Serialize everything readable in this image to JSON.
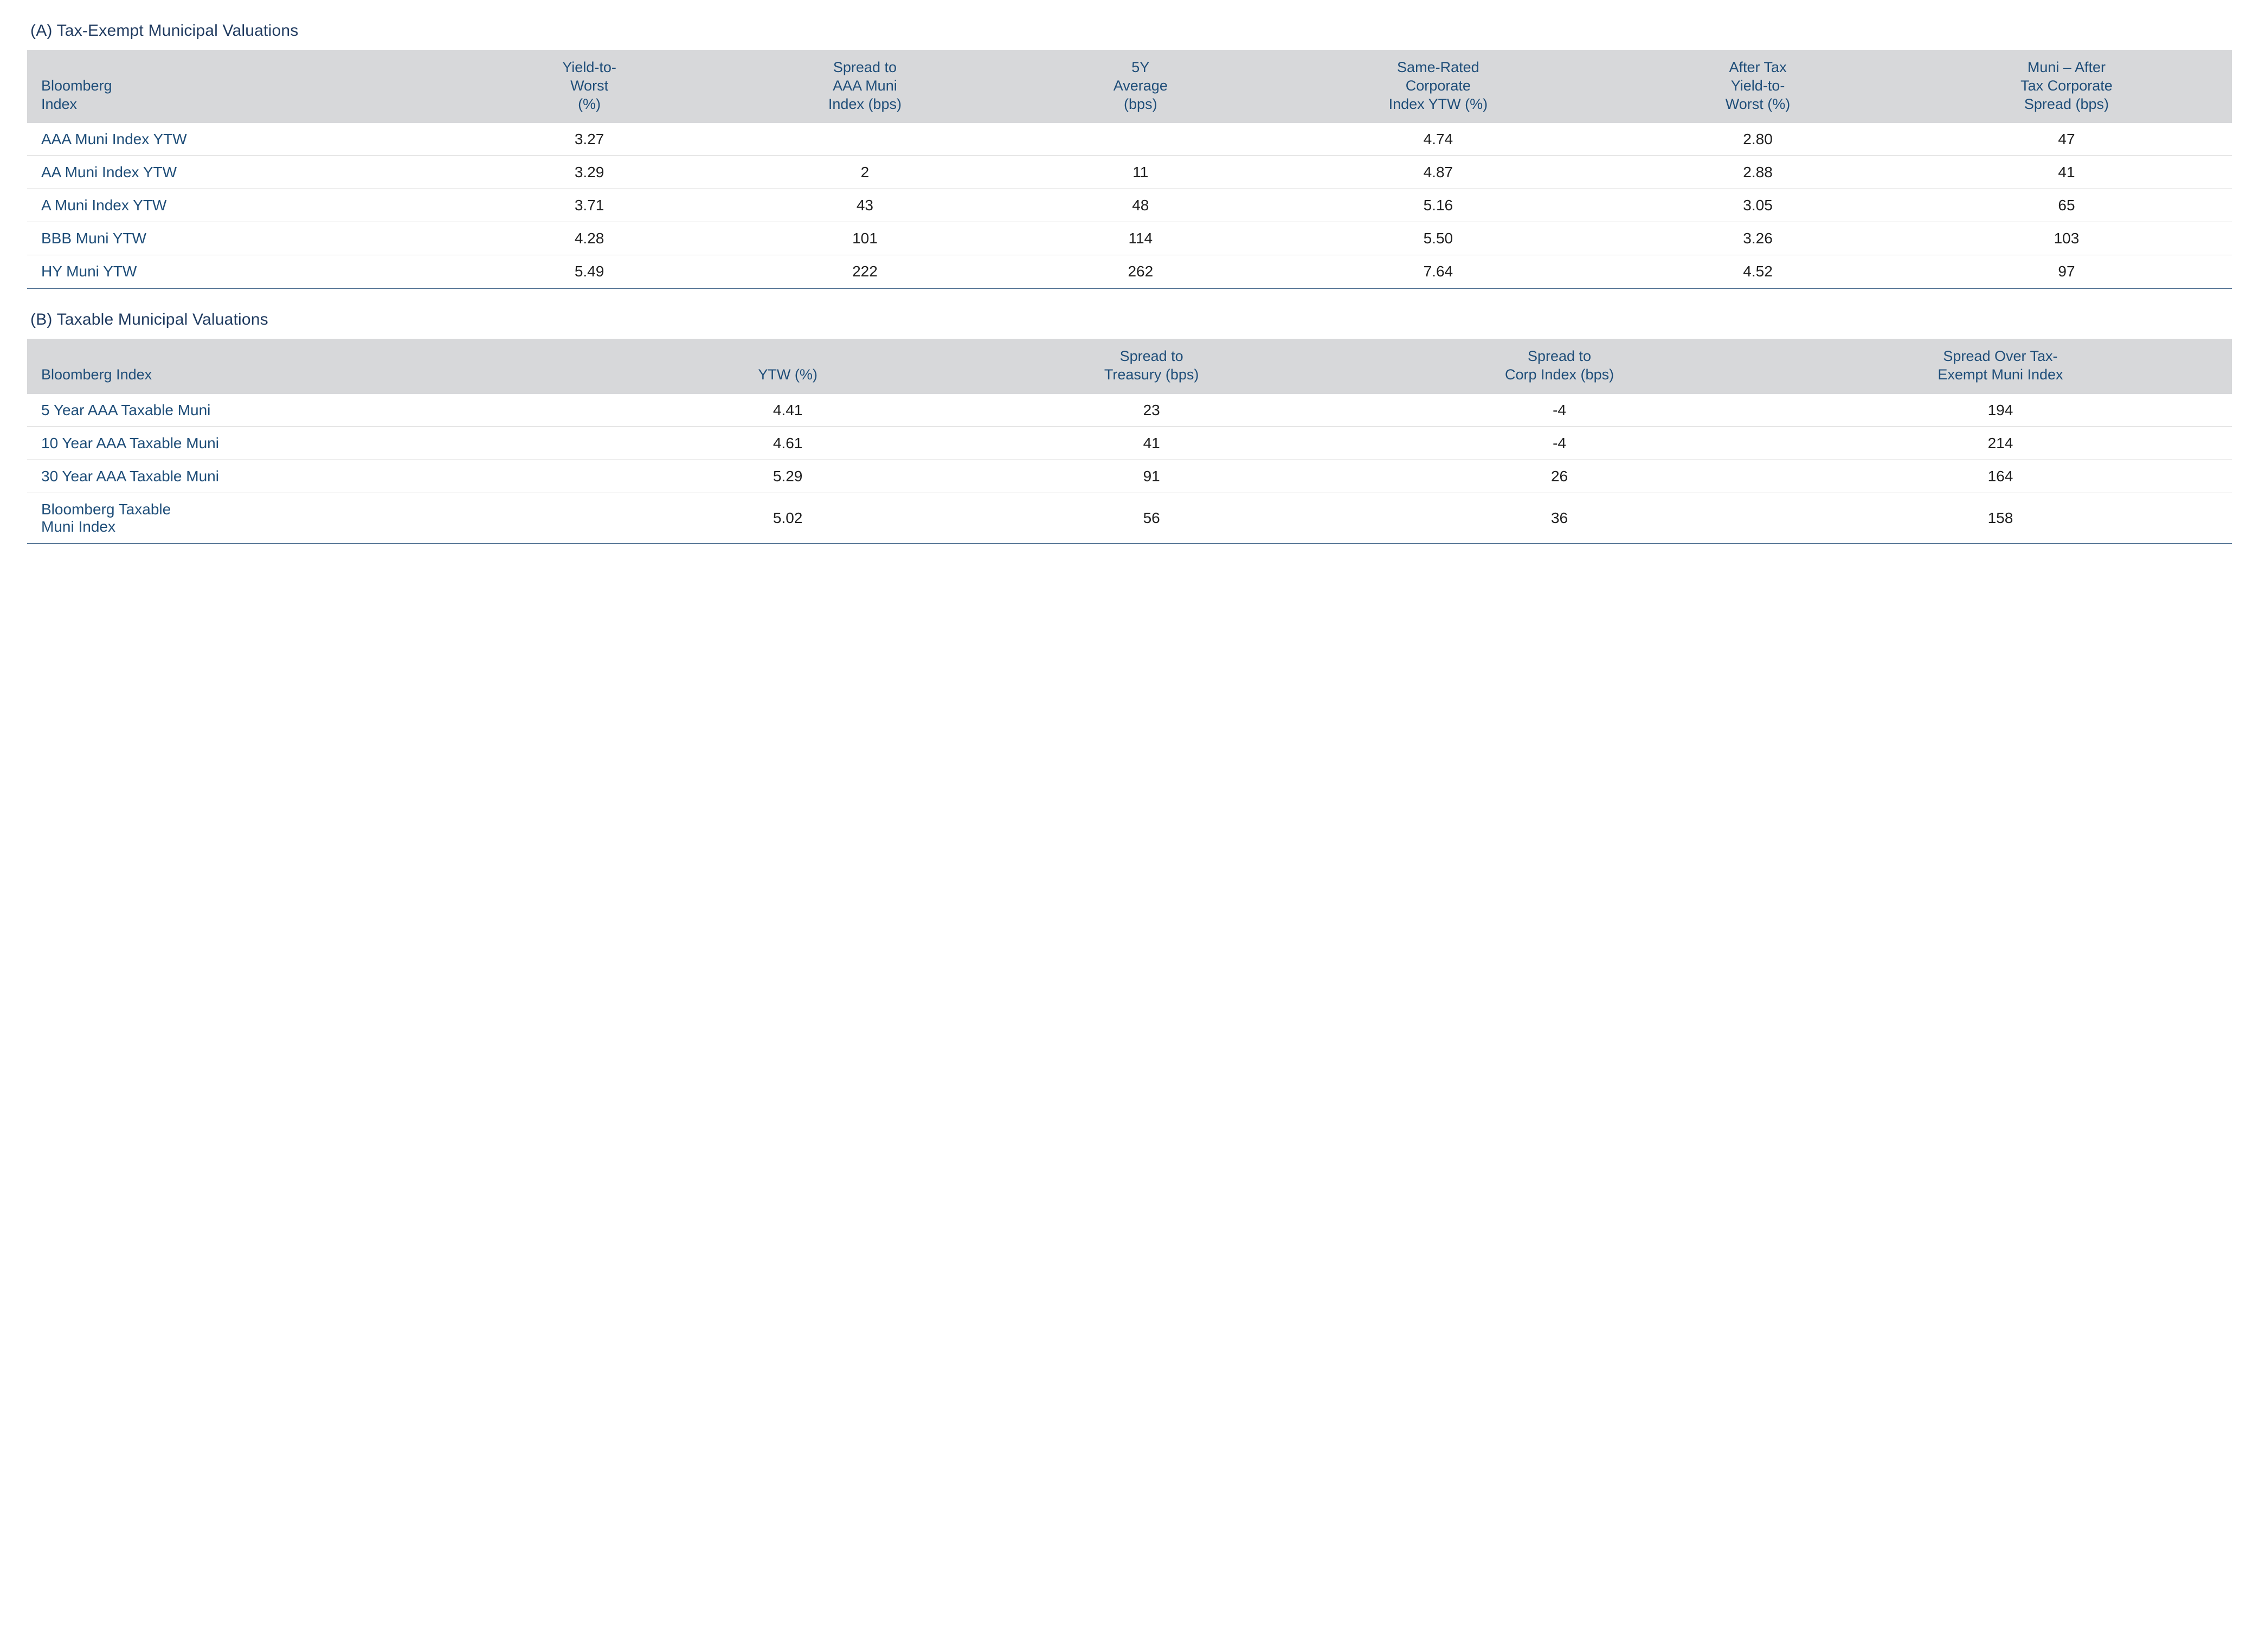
{
  "colors": {
    "header_bg": "#d7d8da",
    "header_text": "#1f4e79",
    "rowlabel_text": "#1f4e79",
    "body_text": "#202020",
    "title_text": "#1f3a5f",
    "row_border": "#bfbfbf",
    "bottom_border": "#5b7a99",
    "page_bg": "#ffffff"
  },
  "typography": {
    "title_fontsize_pt": 22,
    "header_fontsize_pt": 20,
    "cell_fontsize_pt": 21,
    "font_family": "Myriad Pro / Segoe UI / Helvetica"
  },
  "tableA": {
    "title": "(A) Tax-Exempt Municipal Valuations",
    "type": "table",
    "col_widths_pct": [
      20,
      11,
      14,
      11,
      16,
      13,
      15
    ],
    "alignments": [
      "left",
      "center",
      "center",
      "center",
      "center",
      "center",
      "center"
    ],
    "headers": [
      "Bloomberg\nIndex",
      "Yield-to-\nWorst\n(%)",
      "Spread to\nAAA Muni\nIndex (bps)",
      "5Y\nAverage\n(bps)",
      "Same-Rated\nCorporate\nIndex YTW (%)",
      "After Tax\nYield-to-\nWorst (%)",
      "Muni – After\nTax Corporate\nSpread (bps)"
    ],
    "rows": [
      {
        "label": "AAA Muni Index YTW",
        "c2": "3.27",
        "c3": "",
        "c4": "",
        "c5": "4.74",
        "c6": "2.80",
        "c7": "47"
      },
      {
        "label": "AA Muni Index YTW",
        "c2": "3.29",
        "c3": "2",
        "c4": "11",
        "c5": "4.87",
        "c6": "2.88",
        "c7": "41"
      },
      {
        "label": "A Muni Index YTW",
        "c2": "3.71",
        "c3": "43",
        "c4": "48",
        "c5": "5.16",
        "c6": "3.05",
        "c7": "65"
      },
      {
        "label": "BBB Muni YTW",
        "c2": "4.28",
        "c3": "101",
        "c4": "114",
        "c5": "5.50",
        "c6": "3.26",
        "c7": "103"
      },
      {
        "label": "HY Muni YTW",
        "c2": "5.49",
        "c3": "222",
        "c4": "262",
        "c5": "7.64",
        "c6": "4.52",
        "c7": "97"
      }
    ]
  },
  "tableB": {
    "title": "(B) Taxable Municipal Valuations",
    "type": "table",
    "col_widths_pct": [
      27,
      15,
      18,
      19,
      21
    ],
    "alignments": [
      "left",
      "center",
      "center",
      "center",
      "center"
    ],
    "headers": [
      "Bloomberg Index",
      "YTW (%)",
      "Spread to\nTreasury (bps)",
      "Spread to\nCorp Index (bps)",
      "Spread Over Tax-\nExempt Muni Index"
    ],
    "rows": [
      {
        "label": "5 Year AAA Taxable Muni",
        "c2": "4.41",
        "c3": "23",
        "c4": "-4",
        "c5": "194"
      },
      {
        "label": "10 Year AAA Taxable Muni",
        "c2": "4.61",
        "c3": "41",
        "c4": "-4",
        "c5": "214"
      },
      {
        "label": "30 Year AAA Taxable Muni",
        "c2": "5.29",
        "c3": "91",
        "c4": "26",
        "c5": "164"
      },
      {
        "label": "Bloomberg Taxable\nMuni Index",
        "c2": "5.02",
        "c3": "56",
        "c4": "36",
        "c5": "158"
      }
    ]
  }
}
